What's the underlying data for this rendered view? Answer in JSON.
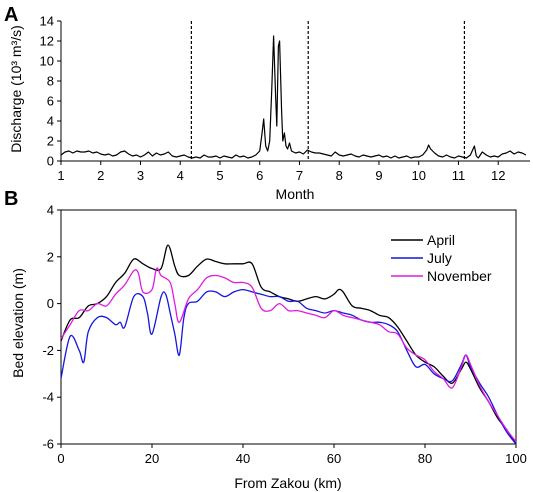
{
  "colors": {
    "axis": "#000000",
    "discharge": "#000000",
    "dashed": "#000000"
  },
  "chart_data": [
    {
      "panel": "A",
      "type": "line",
      "xlabel": "Month",
      "ylabel": "Discharge (10³ m³/s)",
      "ylim": [
        0,
        14
      ],
      "xlim": [
        1,
        12.8
      ],
      "yticks": [
        0,
        2,
        4,
        6,
        8,
        10,
        12,
        14
      ],
      "xticks": [
        1,
        2,
        3,
        4,
        5,
        6,
        7,
        8,
        9,
        10,
        11,
        12
      ],
      "grid": false,
      "vlines": [
        4.28,
        7.22,
        11.15
      ],
      "series": [
        {
          "color": "#000000",
          "x": [
            1.0,
            1.1,
            1.2,
            1.3,
            1.4,
            1.5,
            1.6,
            1.7,
            1.8,
            1.9,
            2.0,
            2.1,
            2.2,
            2.3,
            2.4,
            2.5,
            2.6,
            2.7,
            2.8,
            2.9,
            3.0,
            3.1,
            3.2,
            3.3,
            3.4,
            3.5,
            3.6,
            3.7,
            3.8,
            3.9,
            4.0,
            4.1,
            4.2,
            4.3,
            4.4,
            4.5,
            4.6,
            4.7,
            4.8,
            4.9,
            5.0,
            5.1,
            5.2,
            5.3,
            5.4,
            5.5,
            5.6,
            5.7,
            5.8,
            5.9,
            6.0,
            6.05,
            6.1,
            6.15,
            6.2,
            6.25,
            6.3,
            6.35,
            6.4,
            6.43,
            6.47,
            6.5,
            6.55,
            6.58,
            6.62,
            6.66,
            6.7,
            6.75,
            6.8,
            6.9,
            7.0,
            7.1,
            7.2,
            7.3,
            7.4,
            7.5,
            7.6,
            7.7,
            7.8,
            7.9,
            8.0,
            8.1,
            8.2,
            8.3,
            8.4,
            8.5,
            8.6,
            8.7,
            8.8,
            8.9,
            9.0,
            9.1,
            9.2,
            9.3,
            9.4,
            9.5,
            9.6,
            9.7,
            9.8,
            9.9,
            10.0,
            10.1,
            10.2,
            10.25,
            10.3,
            10.4,
            10.5,
            10.6,
            10.7,
            10.8,
            10.9,
            11.0,
            11.1,
            11.2,
            11.3,
            11.4,
            11.45,
            11.5,
            11.6,
            11.7,
            11.8,
            11.9,
            12.0,
            12.1,
            12.2,
            12.3,
            12.4,
            12.5,
            12.6,
            12.7
          ],
          "y": [
            0.6,
            0.9,
            1.0,
            0.8,
            1.0,
            0.9,
            0.9,
            1.0,
            0.8,
            0.9,
            0.7,
            0.6,
            0.7,
            0.5,
            0.6,
            0.9,
            1.0,
            0.7,
            0.5,
            0.6,
            0.4,
            0.6,
            0.9,
            0.5,
            0.8,
            0.6,
            0.7,
            0.9,
            0.5,
            0.4,
            0.5,
            0.6,
            0.4,
            0.3,
            0.4,
            0.3,
            0.6,
            0.4,
            0.4,
            0.5,
            0.3,
            0.5,
            0.4,
            0.3,
            0.6,
            0.4,
            0.5,
            0.3,
            0.4,
            0.6,
            1.0,
            2.5,
            4.2,
            1.5,
            1.0,
            2.0,
            7.0,
            12.5,
            6.5,
            3.5,
            11.5,
            12.0,
            5.0,
            2.0,
            2.8,
            1.5,
            1.2,
            1.8,
            1.0,
            0.8,
            0.9,
            0.7,
            1.1,
            0.9,
            0.8,
            0.8,
            0.7,
            0.6,
            0.5,
            0.9,
            0.6,
            0.5,
            0.6,
            0.7,
            0.5,
            0.4,
            0.6,
            0.5,
            0.4,
            0.5,
            0.6,
            0.4,
            0.5,
            0.3,
            0.5,
            0.3,
            0.4,
            0.5,
            0.3,
            0.4,
            0.4,
            0.6,
            1.1,
            1.6,
            1.2,
            0.8,
            0.5,
            0.4,
            0.6,
            0.4,
            0.3,
            0.5,
            0.4,
            0.3,
            0.6,
            1.5,
            0.5,
            0.3,
            0.9,
            0.6,
            0.4,
            0.5,
            0.4,
            0.7,
            0.8,
            1.0,
            0.7,
            0.9,
            0.8,
            0.6
          ]
        }
      ]
    },
    {
      "panel": "B",
      "type": "line",
      "xlabel": "From Zakou (km)",
      "ylabel": "Bed elevation (m)",
      "ylim": [
        -6,
        4
      ],
      "xlim": [
        0,
        100
      ],
      "yticks": [
        -6,
        -4,
        -2,
        0,
        2,
        4
      ],
      "xticks": [
        0,
        20,
        40,
        60,
        80,
        100
      ],
      "grid": false,
      "legend_position": "top-right",
      "series": [
        {
          "name": "April",
          "color": "#000000",
          "x": [
            0,
            2,
            4,
            6,
            8,
            10,
            12,
            14,
            16,
            18,
            20,
            22,
            23.5,
            25,
            26,
            28,
            30,
            32,
            34,
            36,
            38,
            40,
            42,
            44,
            46,
            48,
            50,
            52,
            54,
            56,
            58,
            60,
            61,
            62,
            64,
            66,
            68,
            70,
            72,
            74,
            76,
            78,
            80,
            82,
            84,
            86,
            88,
            89,
            90,
            92,
            94,
            96,
            98,
            100
          ],
          "y": [
            -1.6,
            -0.7,
            -0.6,
            -0.1,
            0.0,
            0.3,
            0.9,
            1.3,
            1.9,
            1.7,
            1.5,
            1.5,
            2.5,
            1.6,
            1.2,
            1.2,
            1.6,
            1.9,
            1.8,
            1.7,
            1.7,
            1.7,
            1.7,
            0.7,
            0.5,
            0.3,
            0.2,
            0.1,
            0.2,
            0.3,
            0.2,
            0.4,
            0.6,
            0.5,
            -0.1,
            -0.2,
            -0.3,
            -0.5,
            -0.6,
            -1.0,
            -1.6,
            -2.2,
            -2.5,
            -2.7,
            -3.1,
            -3.4,
            -2.8,
            -2.5,
            -2.8,
            -3.6,
            -4.2,
            -4.9,
            -5.4,
            -6.0
          ]
        },
        {
          "name": "July",
          "color": "#1515e0",
          "x": [
            0,
            2,
            4,
            5,
            6,
            8,
            10,
            12,
            13,
            14,
            16,
            18,
            19,
            20,
            22,
            23,
            24,
            25,
            26,
            27,
            28,
            30,
            32,
            34,
            36,
            38,
            40,
            42,
            44,
            46,
            48,
            50,
            52,
            54,
            56,
            58,
            60,
            62,
            64,
            66,
            68,
            70,
            72,
            74,
            76,
            78,
            80,
            82,
            84,
            86,
            88,
            89,
            90,
            92,
            94,
            96,
            98,
            100
          ],
          "y": [
            -3.2,
            -1.4,
            -2.0,
            -2.5,
            -1.2,
            -0.6,
            -0.6,
            -0.9,
            -0.8,
            -1.0,
            0.3,
            0.3,
            -0.4,
            -1.3,
            0.3,
            0.4,
            -0.4,
            -1.3,
            -2.2,
            -0.6,
            0.0,
            0.1,
            0.5,
            0.5,
            0.3,
            0.5,
            0.6,
            0.5,
            0.4,
            0.3,
            0.3,
            0.1,
            0.1,
            -0.2,
            -0.3,
            -0.4,
            -0.3,
            -0.4,
            -0.5,
            -0.7,
            -0.8,
            -0.8,
            -0.9,
            -1.2,
            -2.0,
            -2.7,
            -2.6,
            -3.0,
            -3.2,
            -3.3,
            -2.6,
            -2.2,
            -2.7,
            -3.4,
            -4.0,
            -4.8,
            -5.5,
            -6.0
          ]
        },
        {
          "name": "November",
          "color": "#e01be0",
          "x": [
            0,
            2,
            4,
            6,
            8,
            10,
            12,
            14,
            16,
            17,
            18,
            20,
            21,
            22,
            24,
            25,
            26,
            28,
            30,
            32,
            34,
            36,
            38,
            40,
            42,
            44,
            46,
            48,
            50,
            52,
            54,
            56,
            58,
            60,
            62,
            64,
            66,
            68,
            70,
            72,
            74,
            76,
            78,
            80,
            82,
            84,
            86,
            88,
            89,
            90,
            92,
            94,
            96,
            98,
            100
          ],
          "y": [
            -1.5,
            -0.9,
            -0.3,
            -0.3,
            0.0,
            -0.1,
            0.4,
            0.8,
            1.4,
            1.3,
            0.5,
            0.6,
            1.5,
            1.2,
            0.9,
            0.0,
            -0.8,
            0.2,
            0.6,
            1.1,
            1.2,
            1.1,
            0.9,
            0.9,
            0.7,
            -0.2,
            -0.3,
            0.0,
            -0.3,
            -0.3,
            -0.4,
            -0.5,
            -0.6,
            -0.3,
            -0.5,
            -0.6,
            -0.7,
            -0.8,
            -0.9,
            -1.2,
            -1.3,
            -1.9,
            -2.2,
            -2.4,
            -2.9,
            -3.2,
            -3.6,
            -2.7,
            -2.2,
            -2.6,
            -3.5,
            -4.2,
            -4.8,
            -5.4,
            -5.9
          ]
        }
      ]
    }
  ]
}
